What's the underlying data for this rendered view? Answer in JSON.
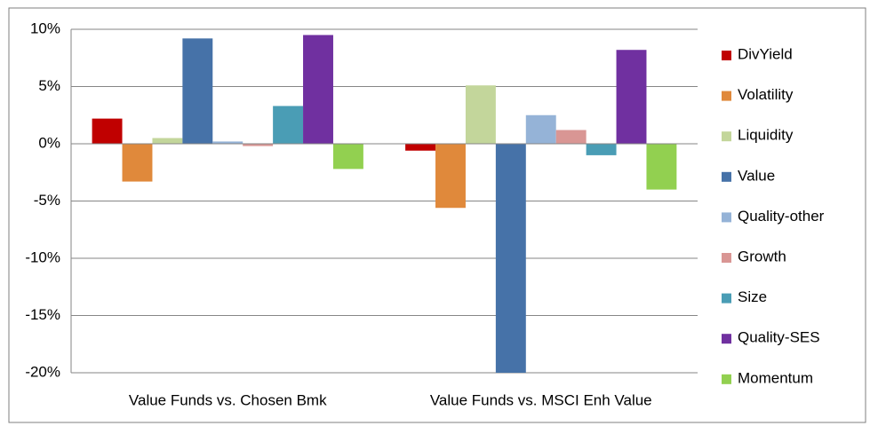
{
  "chart_data": {
    "type": "bar",
    "categories": [
      "Value Funds vs. Chosen Bmk",
      "Value Funds vs. MSCI Enh Value"
    ],
    "series": [
      {
        "name": "DivYield",
        "color": "#c00000",
        "values": [
          2.2,
          -0.6
        ]
      },
      {
        "name": "Volatility",
        "color": "#e0893b",
        "values": [
          -3.3,
          -5.6
        ]
      },
      {
        "name": "Liquidity",
        "color": "#c3d69b",
        "values": [
          0.5,
          5.1
        ]
      },
      {
        "name": "Value",
        "color": "#4672a8",
        "values": [
          9.2,
          -20
        ]
      },
      {
        "name": "Quality-other",
        "color": "#95b3d7",
        "values": [
          0.2,
          2.5
        ]
      },
      {
        "name": "Growth",
        "color": "#d99694",
        "values": [
          -0.2,
          1.2
        ]
      },
      {
        "name": "Size",
        "color": "#4a9db5",
        "values": [
          3.3,
          -1.0
        ]
      },
      {
        "name": "Quality-SES",
        "color": "#7030a0",
        "values": [
          9.5,
          8.2
        ]
      },
      {
        "name": "Momentum",
        "color": "#92d050",
        "values": [
          -2.2,
          -4.0
        ]
      }
    ],
    "ylim": [
      -20,
      10
    ],
    "yticks": [
      {
        "value": -20,
        "label": "-20%"
      },
      {
        "value": -15,
        "label": "-15%"
      },
      {
        "value": -10,
        "label": "-10%"
      },
      {
        "value": -5,
        "label": "-5%"
      },
      {
        "value": 0,
        "label": "0%"
      },
      {
        "value": 5,
        "label": "5%"
      },
      {
        "value": 10,
        "label": "10%"
      }
    ],
    "grid": true,
    "legend": "right"
  }
}
